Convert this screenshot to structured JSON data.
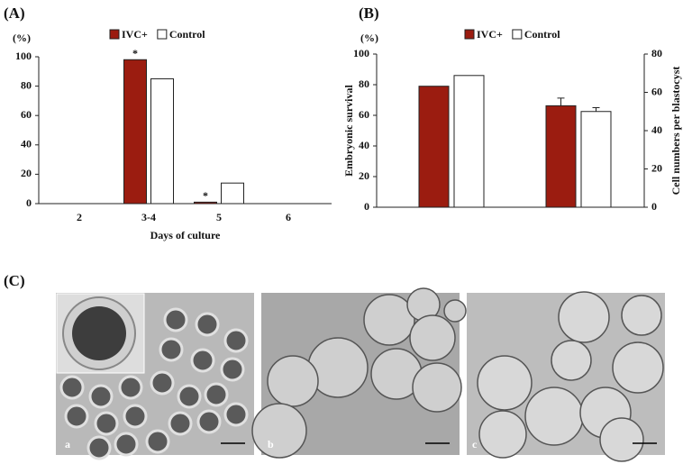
{
  "chart_data": [
    {
      "type": "bar",
      "panel": "(A)",
      "y_unit": "(%)",
      "x_label": "Days of culture",
      "categories": [
        "2",
        "3-4",
        "5",
        "6"
      ],
      "series": [
        {
          "name": "IVC+",
          "color": "#9b1c10",
          "values": [
            0,
            98,
            1,
            0
          ],
          "annotations": [
            null,
            "*",
            "*",
            null
          ]
        },
        {
          "name": "Control",
          "color": "#ffffff",
          "values": [
            0,
            85,
            14,
            0
          ]
        }
      ],
      "ylim": [
        0,
        100
      ],
      "yticks": [
        0,
        20,
        40,
        60,
        80,
        100
      ]
    },
    {
      "type": "bar",
      "panel": "(B)",
      "y_unit": "(%)",
      "y_label": "Embryonic survival",
      "y2_label": "Cell numbers per blastocyst",
      "categories": [
        null,
        null
      ],
      "category_axes": [
        "y",
        "y2"
      ],
      "series": [
        {
          "name": "IVC+",
          "color": "#9b1c10",
          "values": [
            79,
            53
          ],
          "errors": [
            null,
            4
          ]
        },
        {
          "name": "Control",
          "color": "#ffffff",
          "values": [
            86,
            50
          ],
          "errors": [
            null,
            2
          ]
        }
      ],
      "ylim": [
        0,
        100
      ],
      "yticks": [
        0,
        20,
        40,
        60,
        80,
        100
      ],
      "y2lim": [
        0,
        80
      ],
      "y2ticks": [
        0,
        20,
        40,
        60,
        80
      ]
    }
  ],
  "panel_c": {
    "label": "(C)",
    "images": [
      "a",
      "b",
      "c"
    ]
  }
}
